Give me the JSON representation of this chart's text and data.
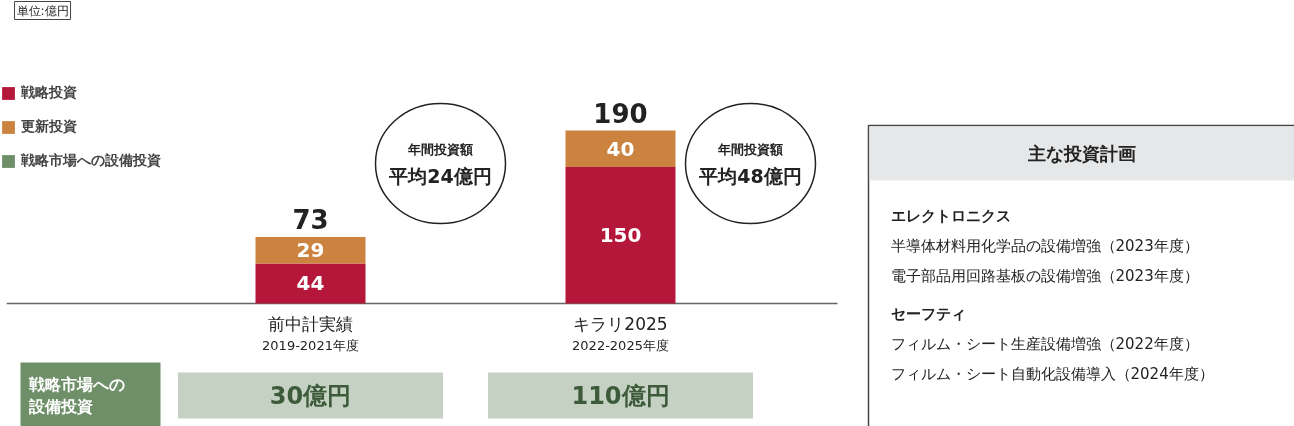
{
  "chart_data": [
    {
      "type": "bar",
      "stacked": true,
      "categories": [
        "前中計実績\n2019-2021年度",
        "キラリ2025\n2022-2025年度"
      ],
      "series": [
        {
          "name": "戦略投資",
          "color": "#b5173a",
          "values": [
            44,
            150
          ]
        },
        {
          "name": "更新投資",
          "color": "#cd8340",
          "values": [
            29,
            40
          ]
        },
        {
          "name": "戦略市場への設備投資",
          "color": "#6e8f68",
          "type": "other",
          "values": [
            null,
            null
          ]
        }
      ],
      "data_labels": true,
      "totals": [
        "73",
        "190"
      ],
      "legend": "top left",
      "grid": false,
      "annotations": [
        "単位:億円",
        "年間投資額",
        "平均24億円",
        "年間投資額",
        "平均48億円",
        "戦略市場への設備投資",
        "30億円",
        "110億円"
      ]
    },
    {
      "type": "other",
      "title": "主な投資計画",
      "annotations": [
        "エレクトロニクス",
        "半導体材料用化学品の設備増強（2023年度）",
        "電子部品用回路基板の設備増強（2023年度）",
        "セーフティ",
        "フィルム・シート生産設備増強（2022年度）",
        "フィルム・シート自動化設備導入（2024年度）"
      ]
    }
  ]
}
